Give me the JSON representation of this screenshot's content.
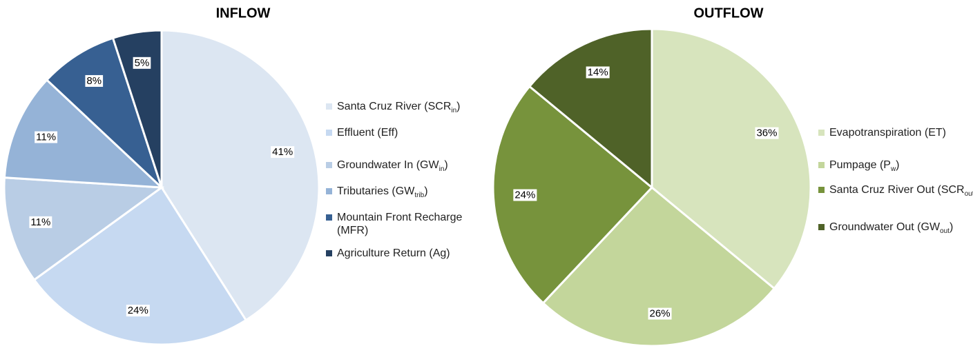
{
  "chart_data": [
    {
      "type": "pie",
      "title": "INFLOW",
      "categories": [
        [
          "Santa Cruz River (SCR",
          "in",
          ")"
        ],
        [
          "Effluent (Eff)"
        ],
        [
          "Groundwater In (GW",
          "in",
          ")"
        ],
        [
          "Tributaries (GW",
          "trib",
          ")"
        ],
        [
          "Mountain Front Recharge (MFR)"
        ],
        [
          "Agriculture Return (Ag)"
        ]
      ],
      "values": [
        41,
        24,
        11,
        11,
        8,
        5
      ],
      "value_labels": [
        "41%",
        "24%",
        "11%",
        "11%",
        "8%",
        "5%"
      ],
      "colors": [
        "#dce6f2",
        "#c6d9f1",
        "#b9cde5",
        "#95b3d7",
        "#376092",
        "#254061"
      ]
    },
    {
      "type": "pie",
      "title": "OUTFLOW",
      "categories": [
        [
          "Evapotranspiration (ET)"
        ],
        [
          "Pumpage (P",
          "w",
          ")"
        ],
        [
          "Santa Cruz River Out (SCR",
          "out",
          ")"
        ],
        [
          "Groundwater Out (GW",
          "out",
          ")"
        ]
      ],
      "values": [
        36,
        26,
        24,
        14
      ],
      "value_labels": [
        "36%",
        "26%",
        "24%",
        "14%"
      ],
      "colors": [
        "#d7e4bd",
        "#c3d69b",
        "#77933c",
        "#4f6228"
      ]
    }
  ]
}
